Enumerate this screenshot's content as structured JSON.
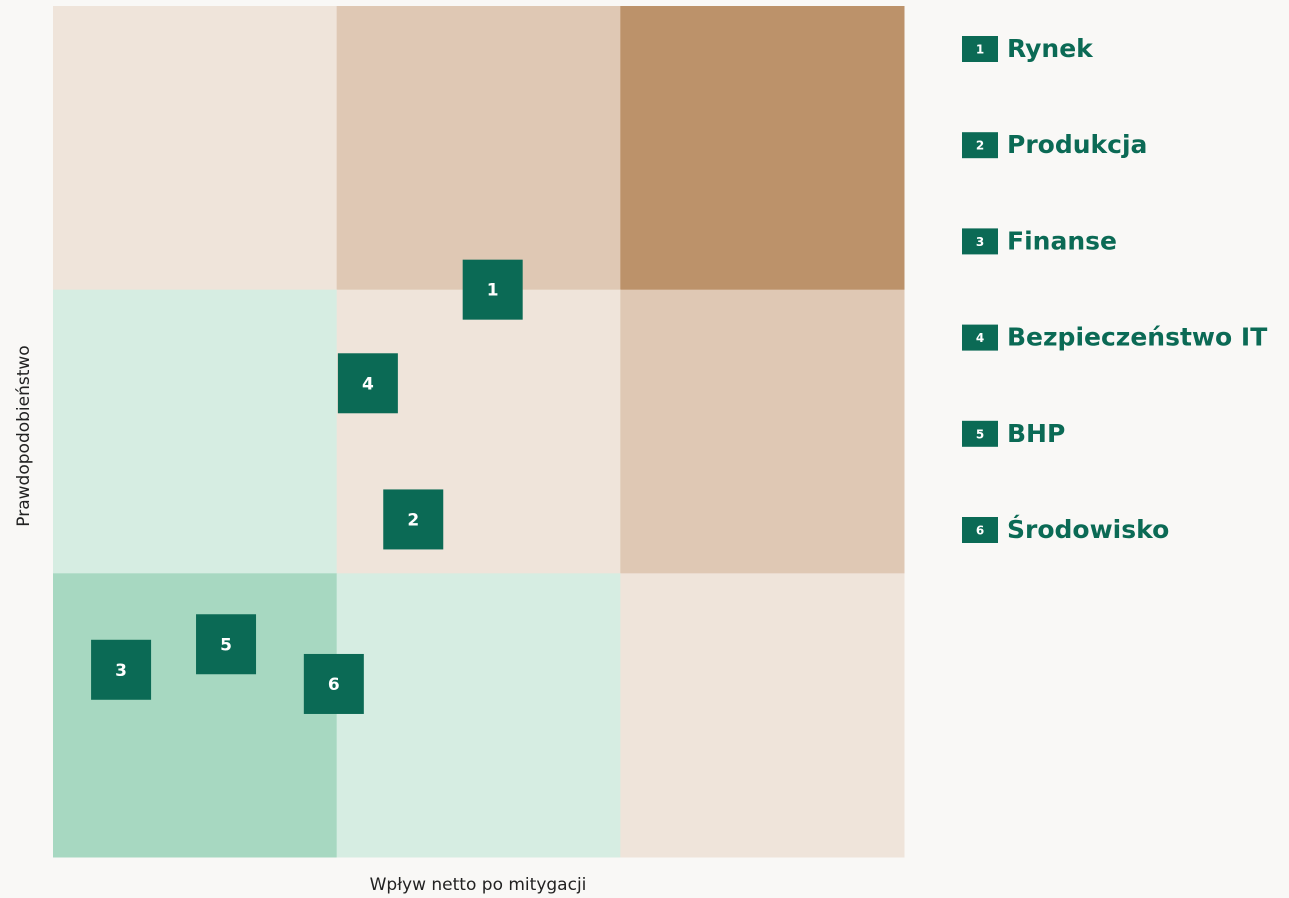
{
  "chart_data": {
    "type": "scatter",
    "x_label": "Wpływ netto po mitygacji",
    "y_label": "Prawdopodobieństwo",
    "xlim": [
      0,
      3
    ],
    "ylim": [
      0,
      3
    ],
    "cell_colors": [
      [
        "#efe4da",
        "#dfc8b4",
        "#bc926a"
      ],
      [
        "#d6ede2",
        "#efe4da",
        "#dfc8b4"
      ],
      [
        "#a7d8c1",
        "#d6ede2",
        "#efe4da"
      ]
    ],
    "color": "#0b6a55",
    "labels": [
      "1",
      "2",
      "3",
      "4",
      "5",
      "6"
    ],
    "names": [
      "Rynek",
      "Produkcja",
      "Finanse",
      "Bezpieczeństwo IT",
      "BHP",
      "Środowisko"
    ],
    "x": [
      1.55,
      1.27,
      0.24,
      1.11,
      0.61,
      0.99
    ],
    "values": [
      2.0,
      1.19,
      0.66,
      1.67,
      0.75,
      0.61
    ]
  }
}
